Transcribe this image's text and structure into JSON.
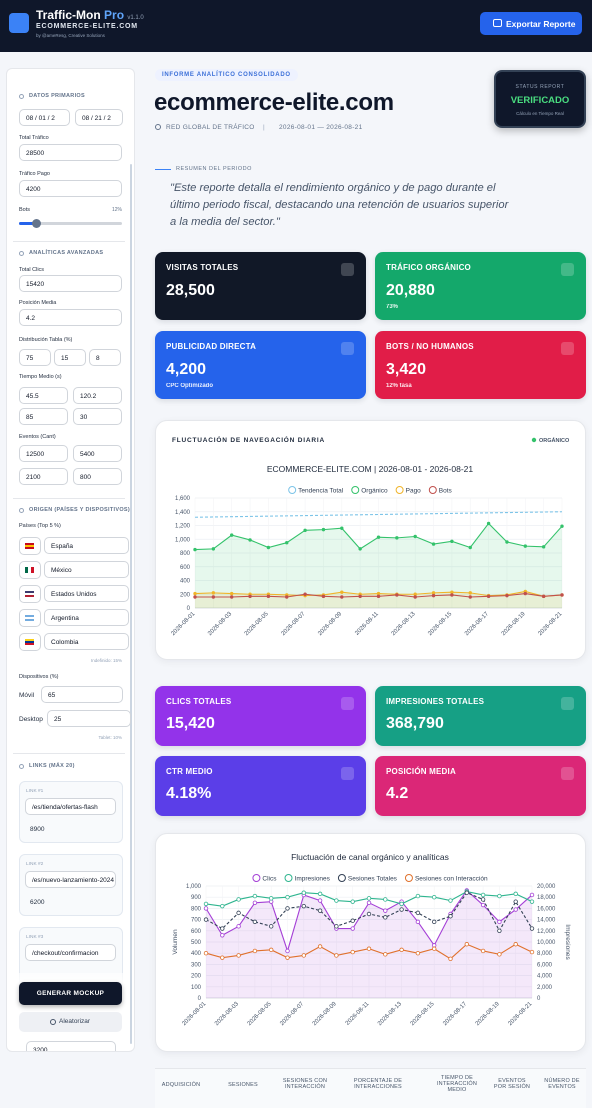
{
  "header": {
    "title": "Traffic-Mon",
    "title_accent": "Pro",
    "version": "v1.1.0",
    "domain": "ECOMMERCE-ELITE.COM",
    "credit": "by @ameResg, Creative Solutions",
    "export_button": "Exportar Reporte"
  },
  "sidebar": {
    "section_titles": [
      "DATOS PRIMARIOS",
      "ANALÍTICAS AVANZADAS",
      "ORIGEN (PAÍSES Y DISPOSITIVOS)",
      "LINKS (MÁX 20)"
    ],
    "dates": [
      "08 / 01 / 2",
      "08 / 21 / 2"
    ],
    "total_trafico": {
      "label": "Total Tráfico",
      "value": 28500
    },
    "trafico_pago": {
      "label": "Tráfico Pago",
      "value": 4200
    },
    "bots": {
      "label": "Bots",
      "value": "12%"
    },
    "total_clics": {
      "label": "Total Clics",
      "value": 15420
    },
    "posicion_media": {
      "label": "Posición Media",
      "value": 4.2
    },
    "distribucion": {
      "label": "Distribución Tabla (%)",
      "values": [
        75,
        15,
        8
      ]
    },
    "tiempo_medio": {
      "label": "Tiempo Medio (s)",
      "values": [
        45.5,
        120.2,
        85,
        30
      ]
    },
    "eventos": {
      "label": "Eventos (Cant)",
      "values": [
        12500,
        5400,
        2100,
        800
      ]
    },
    "paises": {
      "label": "Países (Top 5 %)",
      "names": [
        "España",
        "México",
        "Estados Unidos",
        "Argentina",
        "Colombia"
      ],
      "note": "Indefinido: 15%"
    },
    "dispositivos": {
      "label": "Dispositivos (%)",
      "rows": [
        {
          "name": "Móvil",
          "value": 65
        },
        {
          "name": "Desktop",
          "value": 25
        }
      ],
      "note": "Tablet: 10%"
    },
    "links": [
      {
        "label": "LINK #1",
        "url": "/es/tienda/ofertas-flash",
        "value": 8900
      },
      {
        "label": "LINK #2",
        "url": "/es/nuevo-lanzamiento-2024",
        "value": 6200
      },
      {
        "label": "LINK #3",
        "url": "/checkout/confirmacion"
      }
    ],
    "generate_button": "GENERAR MOCKUP",
    "random_button": "Aleatorizar",
    "trailing_value": 3200
  },
  "report": {
    "badge": "INFORME ANALÍTICO CONSOLIDADO",
    "site": "ecommerce-elite.com",
    "network": "RED GLOBAL DE TRÁFICO",
    "separator": "|",
    "period": "2026-08-01 — 2026-08-21",
    "status": {
      "title": "STATUS REPORT",
      "value": "VERIFICADO",
      "note": "Cálculo en Tiempo Real"
    },
    "summary_title": "RESUMEN DEL PERIODO",
    "summary": "\"Este reporte detalla el rendimiento orgánico y de pago durante el último periodo fiscal, destacando una retención de usuarios superior a la media del sector.\""
  },
  "kpis": [
    {
      "label": "VISITAS TOTALES",
      "value": "28,500"
    },
    {
      "label": "TRÁFICO ORGÁNICO",
      "value": "20,880",
      "sub": "73%"
    },
    {
      "label": "PUBLICIDAD DIRECTA",
      "value": "4,200",
      "sub": "CPC Optimizado"
    },
    {
      "label": "BOTS / NO HUMANOS",
      "value": "3,420",
      "sub": "12% tasa"
    }
  ],
  "metrics": [
    {
      "label": "CLICS TOTALES",
      "value": "15,420"
    },
    {
      "label": "IMPRESIONES TOTALES",
      "value": "368,790"
    },
    {
      "label": "CTR MEDIO",
      "value": "4.18%"
    },
    {
      "label": "POSICIÓN MEDIA",
      "value": "4.2"
    }
  ],
  "chart_data": [
    {
      "type": "line",
      "heading": "FLUCTUACIÓN DE NAVEGACIÓN DIARIA",
      "heading_legend": "ORGÁNICO",
      "title": "ECOMMERCE-ELITE.COM | 2026-08-01 - 2026-08-21",
      "categories": [
        "2026-08-01",
        null,
        "2026-08-03",
        null,
        "2026-08-05",
        null,
        "2026-08-07",
        null,
        "2026-08-09",
        null,
        "2026-08-11",
        null,
        "2026-08-13",
        null,
        "2026-08-15",
        null,
        "2026-08-17",
        null,
        "2026-08-19",
        null,
        "2026-08-21"
      ],
      "ylim": [
        0,
        1600
      ],
      "yticks": [
        0,
        200,
        400,
        600,
        800,
        {
          "value": 1000,
          "label": "1,000"
        },
        {
          "value": 1200,
          "label": "1,200"
        },
        {
          "value": 1400,
          "label": "1,400"
        },
        {
          "value": 1600,
          "label": "1,600"
        }
      ],
      "grid": true,
      "markers": true,
      "series": [
        {
          "name": "Tendencia Total",
          "color": "#7cc4e8",
          "dash": true,
          "values": [
            1320,
            1324,
            1328,
            1332,
            1336,
            1340,
            1344,
            1348,
            1352,
            1356,
            1360,
            1364,
            1368,
            1372,
            1376,
            1380,
            1384,
            1388,
            1392,
            1396,
            1400
          ]
        },
        {
          "name": "Orgánico",
          "color": "#34c26b",
          "area": true,
          "values": [
            850,
            860,
            1060,
            990,
            880,
            950,
            1130,
            1140,
            1160,
            860,
            1030,
            1020,
            1040,
            930,
            970,
            880,
            1230,
            960,
            900,
            890,
            1190
          ]
        },
        {
          "name": "Pago",
          "color": "#f0b429",
          "area": true,
          "values": [
            210,
            220,
            210,
            200,
            200,
            190,
            180,
            190,
            230,
            200,
            210,
            200,
            200,
            220,
            230,
            220,
            180,
            190,
            240,
            170,
            190
          ]
        },
        {
          "name": "Bots",
          "color": "#c0504d",
          "values": [
            160,
            160,
            160,
            170,
            170,
            160,
            200,
            170,
            160,
            170,
            170,
            190,
            160,
            180,
            190,
            160,
            170,
            180,
            210,
            170,
            190
          ]
        }
      ]
    },
    {
      "type": "line",
      "title": "Fluctuación de canal orgánico y analíticas",
      "ylabel": "Volumen",
      "y2label": "Impresiones",
      "categories": [
        "2026-08-01",
        null,
        "2026-08-03",
        null,
        "2026-08-05",
        null,
        "2026-08-07",
        null,
        "2026-08-09",
        null,
        "2026-08-11",
        null,
        "2026-08-13",
        null,
        "2026-08-15",
        null,
        "2026-08-17",
        null,
        "2026-08-19",
        null,
        "2026-08-21"
      ],
      "ylim": [
        0,
        1000
      ],
      "yticks": [
        0,
        100,
        200,
        300,
        400,
        500,
        600,
        700,
        800,
        900,
        {
          "value": 1000,
          "label": "1,000"
        }
      ],
      "y2lim": [
        0,
        20000
      ],
      "y2ticks": [
        0,
        {
          "value": 2000,
          "label": "2,000"
        },
        {
          "value": 4000,
          "label": "4,000"
        },
        {
          "value": 6000,
          "label": "6,000"
        },
        {
          "value": 8000,
          "label": "8,000"
        },
        {
          "value": 10000,
          "label": "10,000"
        },
        {
          "value": 12000,
          "label": "12,000"
        },
        {
          "value": 14000,
          "label": "14,000"
        },
        {
          "value": 16000,
          "label": "16,000"
        },
        {
          "value": 18000,
          "label": "18,000"
        },
        {
          "value": 20000,
          "label": "20,000"
        }
      ],
      "grid": true,
      "markers": true,
      "series": [
        {
          "name": "Clics",
          "color": "#a43fd6",
          "area": true,
          "values": [
            800,
            560,
            640,
            850,
            860,
            420,
            920,
            870,
            620,
            620,
            850,
            780,
            860,
            680,
            470,
            750,
            960,
            830,
            680,
            790,
            920
          ]
        },
        {
          "name": "Impresiones",
          "color": "#2fb58f",
          "axis": "y2",
          "values": [
            16800,
            16400,
            17600,
            18200,
            17800,
            18000,
            18800,
            18600,
            17400,
            17200,
            17800,
            17600,
            16800,
            18200,
            18000,
            17400,
            19000,
            18400,
            18200,
            18600,
            17200
          ]
        },
        {
          "name": "Sesiones Totales",
          "color": "#334155",
          "dash": true,
          "values": [
            700,
            620,
            760,
            680,
            640,
            800,
            820,
            780,
            640,
            690,
            750,
            720,
            790,
            760,
            680,
            730,
            940,
            880,
            600,
            860,
            620
          ]
        },
        {
          "name": "Sesiones con Interacción",
          "color": "#e0712c",
          "values": [
            400,
            360,
            380,
            420,
            430,
            360,
            380,
            460,
            380,
            410,
            440,
            390,
            430,
            400,
            440,
            350,
            480,
            420,
            390,
            480,
            410
          ]
        }
      ]
    }
  ],
  "table": {
    "headers": [
      "ADQUISICIÓN",
      "SESIONES",
      "SESIONES CON INTERACCIÓN",
      "PORCENTAJE DE INTERACCIONES",
      "TIEMPO DE INTERACCIÓN MEDIO",
      "EVENTOS POR SESIÓN",
      "NÚMERO DE EVENTOS"
    ]
  }
}
